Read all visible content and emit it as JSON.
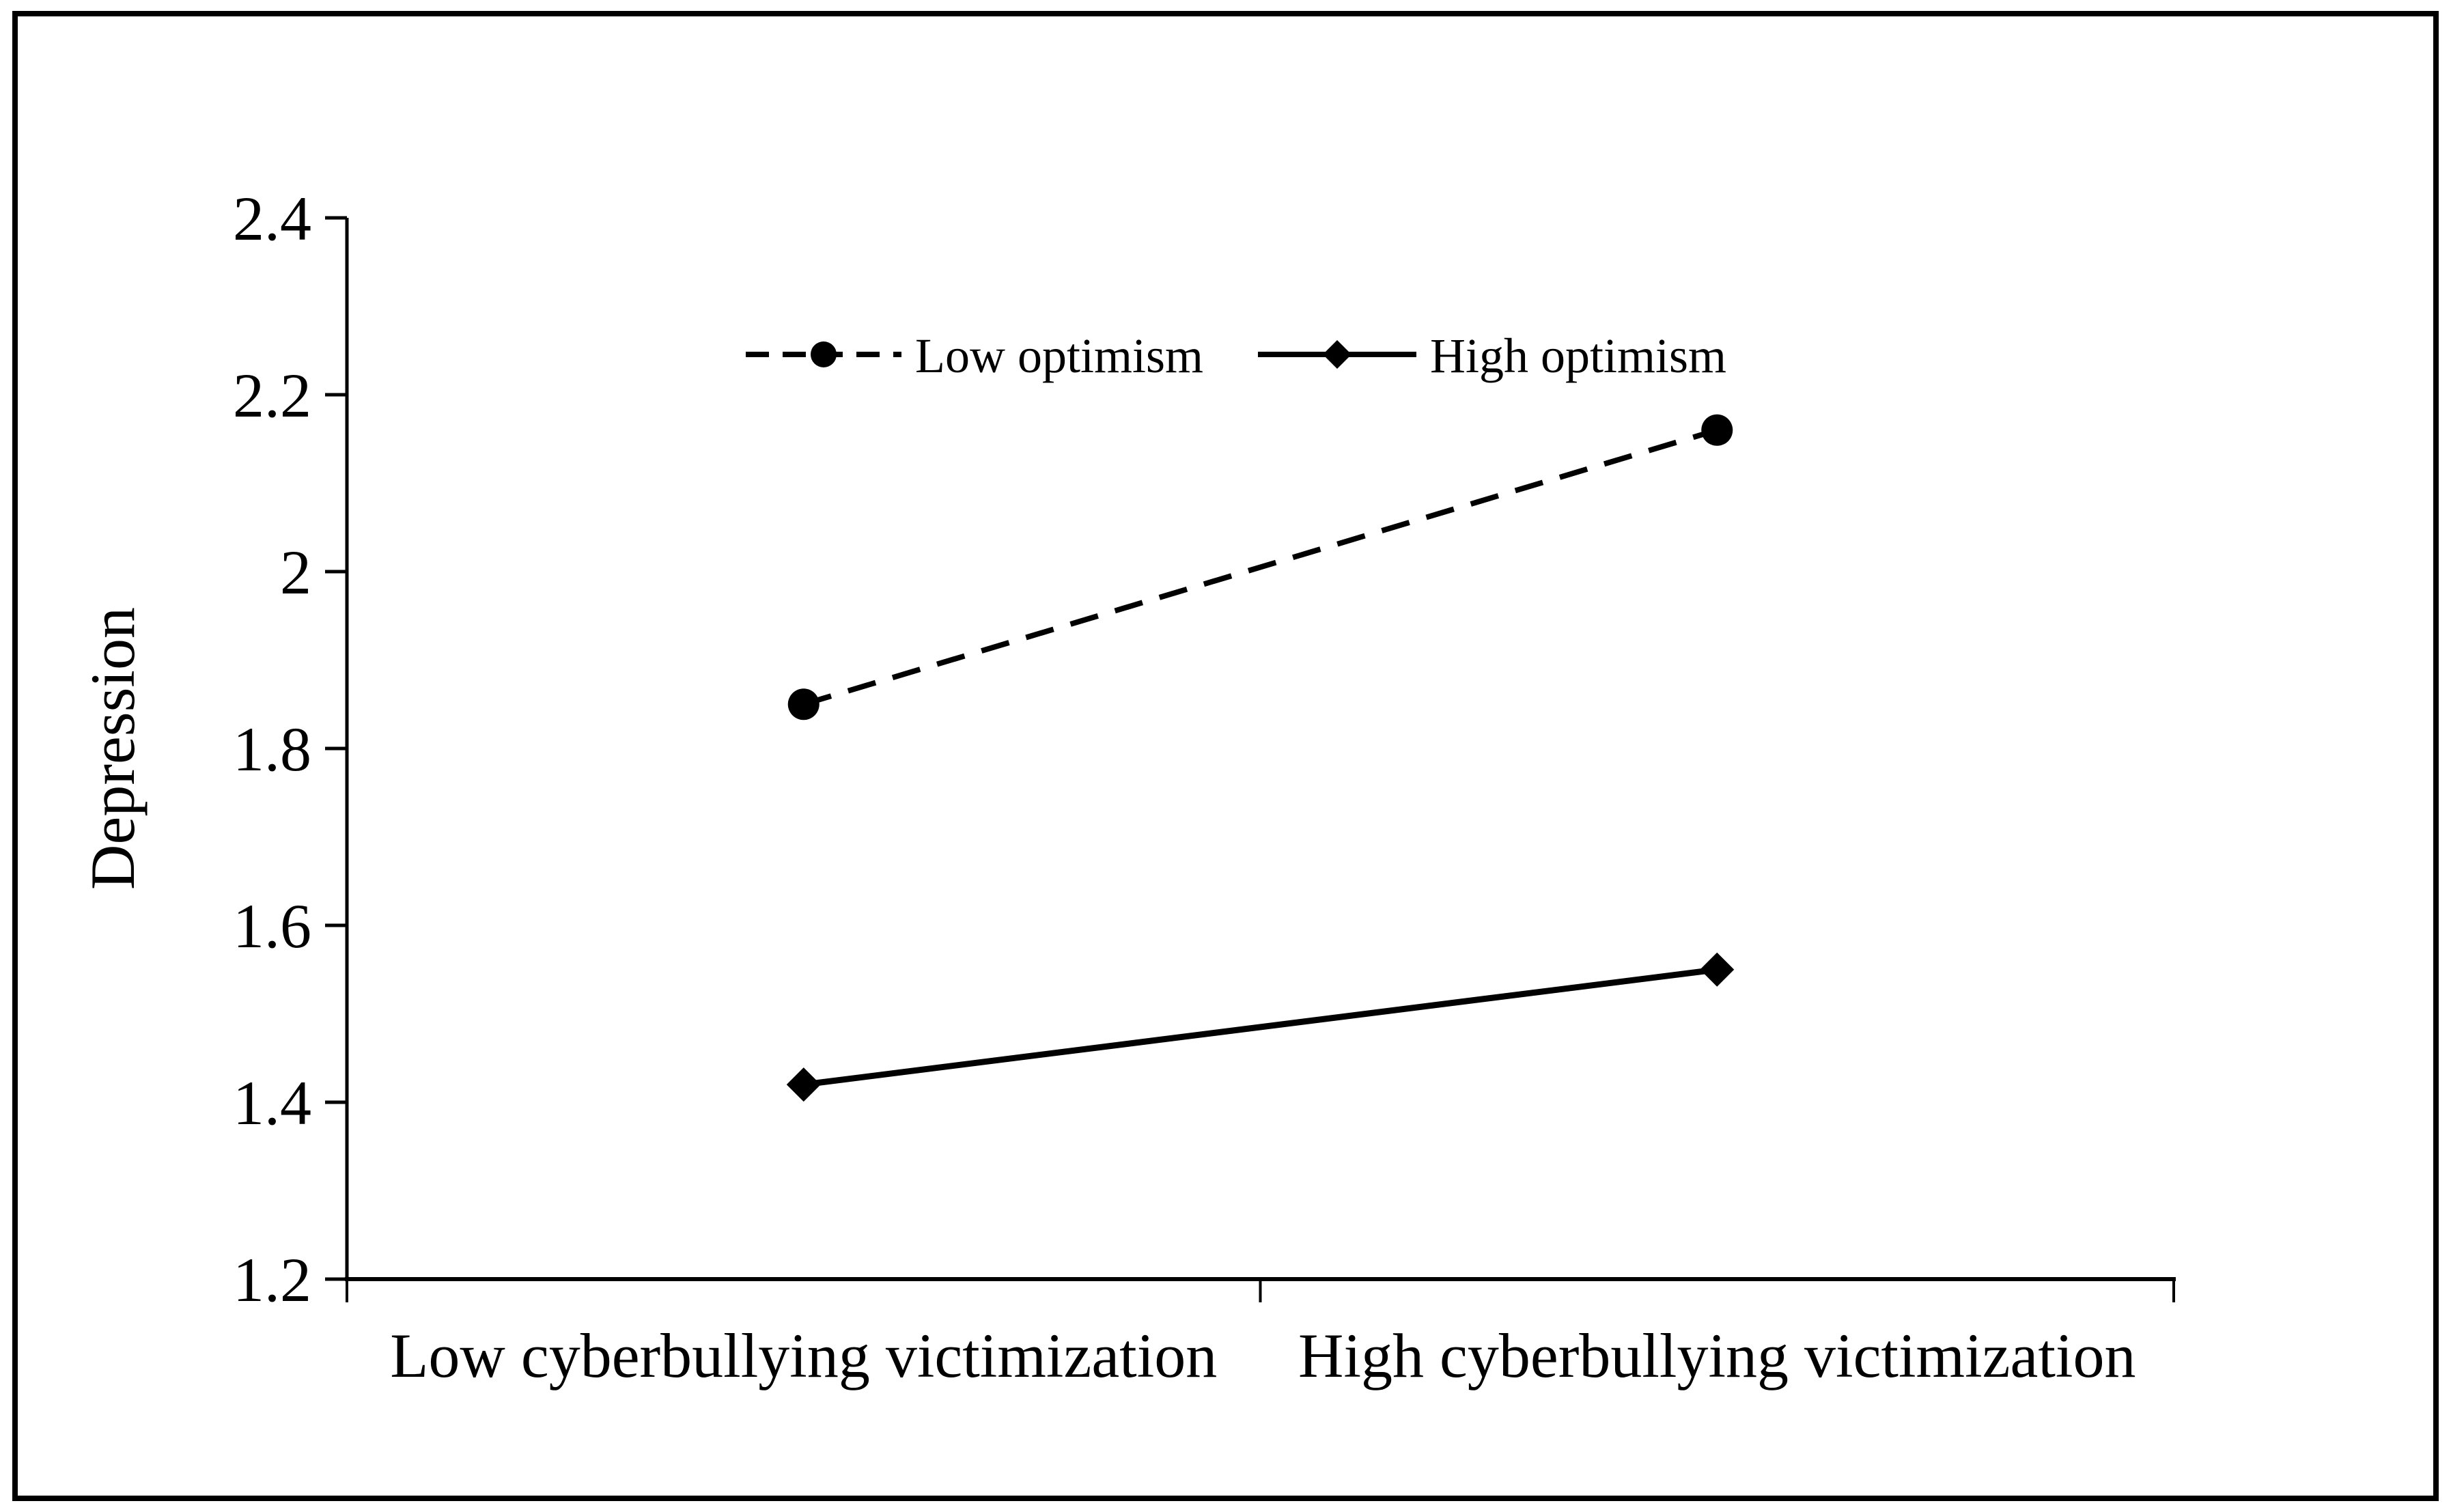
{
  "figure": {
    "background": "#ffffff",
    "frame_color": "#000000",
    "ink_color": "#000000"
  },
  "chart_data": {
    "type": "line",
    "title": "",
    "categories": [
      "Low cyberbullying victimization",
      "High cyberbullying victimization"
    ],
    "series": [
      {
        "name": "Low optimism",
        "values": [
          1.85,
          2.16
        ],
        "line_style": "dashed",
        "marker": "circle",
        "color": "#000000"
      },
      {
        "name": "High optimism",
        "values": [
          1.42,
          1.55
        ],
        "line_style": "solid",
        "marker": "diamond",
        "color": "#000000"
      }
    ],
    "xlabel": "",
    "ylabel": "Depression",
    "ylim": [
      1.2,
      2.4
    ],
    "yticks": [
      {
        "value": 2.4,
        "label": "2.4"
      },
      {
        "value": 2.2,
        "label": "2.2"
      },
      {
        "value": 2.0,
        "label": "2"
      },
      {
        "value": 1.8,
        "label": "1.8"
      },
      {
        "value": 1.6,
        "label": "1.6"
      },
      {
        "value": 1.4,
        "label": "1.4"
      },
      {
        "value": 1.2,
        "label": "1.2"
      }
    ],
    "grid": false,
    "legend_position": "top-center-inside"
  }
}
